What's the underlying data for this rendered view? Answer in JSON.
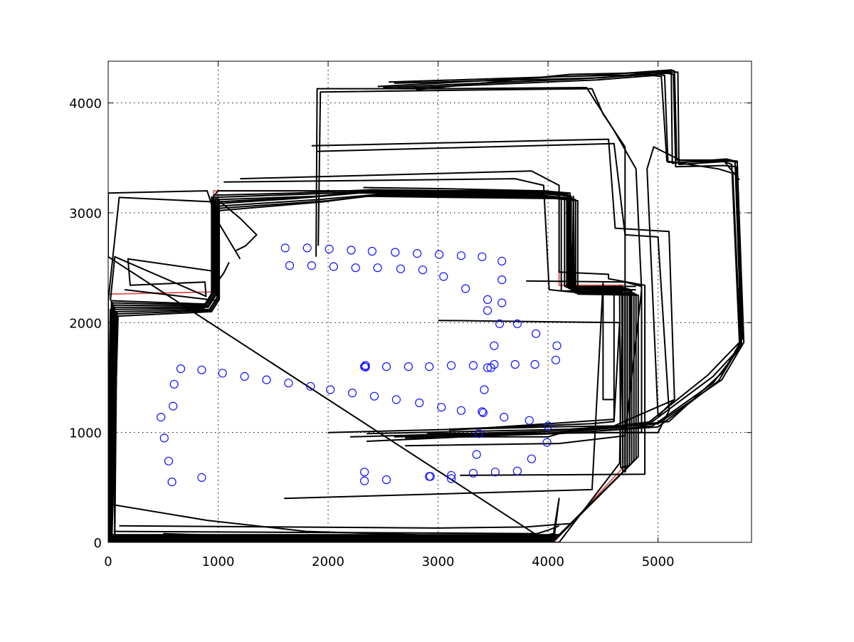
{
  "chart_data": {
    "type": "scatter",
    "xlim": [
      0,
      5850
    ],
    "ylim": [
      0,
      4380
    ],
    "xticks": [
      0,
      1000,
      2000,
      3000,
      4000,
      5000
    ],
    "yticks": [
      0,
      1000,
      2000,
      3000,
      4000
    ],
    "xtick_labels": [
      "0",
      "1000",
      "2000",
      "3000",
      "4000",
      "5000"
    ],
    "ytick_labels": [
      "0",
      "1000",
      "2000",
      "3000",
      "4000"
    ],
    "grid": true,
    "colors": {
      "markers": "#1010ff",
      "trajectories": "#000000",
      "reference": "#e06060"
    },
    "landmarks": {
      "x": [
        1610,
        1810,
        2010,
        2210,
        2400,
        2610,
        2810,
        3010,
        3210,
        3400,
        3580,
        1650,
        1850,
        2050,
        2250,
        2450,
        2660,
        2860,
        3050,
        3250,
        3450,
        3580,
        3580,
        3720,
        3890,
        4080,
        4070,
        3880,
        3700,
        3510,
        3480,
        3510,
        3560,
        3450,
        3420,
        3400,
        3600,
        3830,
        4000,
        3990,
        3850,
        3720,
        3520,
        3320,
        3120,
        2930,
        2530,
        2330,
        2330,
        2920,
        3120,
        3350,
        3370,
        2330,
        2530,
        2730,
        2920,
        3120,
        3320,
        3450,
        3410,
        3210,
        3030,
        2830,
        2620,
        2420,
        2220,
        2020,
        1840,
        1640,
        1440,
        1240,
        1040,
        850,
        660,
        600,
        590,
        480,
        510,
        550,
        580,
        850,
        2340,
        2340
      ],
      "y": [
        2680,
        2680,
        2670,
        2660,
        2650,
        2640,
        2630,
        2620,
        2610,
        2600,
        2560,
        2520,
        2520,
        2510,
        2500,
        2500,
        2490,
        2480,
        2420,
        2310,
        2210,
        2180,
        2390,
        1990,
        1900,
        1790,
        1660,
        1620,
        1620,
        1620,
        1590,
        1790,
        1990,
        2110,
        1390,
        1190,
        1140,
        1110,
        1060,
        910,
        760,
        650,
        640,
        630,
        610,
        600,
        570,
        560,
        640,
        600,
        580,
        800,
        990,
        1600,
        1600,
        1600,
        1600,
        1610,
        1610,
        1590,
        1180,
        1200,
        1230,
        1270,
        1300,
        1330,
        1360,
        1390,
        1420,
        1450,
        1480,
        1510,
        1540,
        1570,
        1580,
        1440,
        1240,
        1140,
        950,
        740,
        550,
        590,
        1610,
        1595
      ]
    },
    "reference_path": {
      "x": [
        0,
        960,
        960,
        4000,
        4100,
        4100,
        4700,
        4700,
        4050,
        0,
        0
      ],
      "y": [
        2260,
        2280,
        3200,
        3200,
        3150,
        2340,
        2340,
        700,
        0,
        0,
        2260
      ]
    },
    "trajectories": [
      {
        "x": [
          2320,
          3000,
          3940,
          4150,
          4150,
          4700,
          4700,
          4050,
          10,
          30,
          880,
          950,
          950,
          1800,
          2500
        ],
        "y": [
          3230,
          3220,
          3200,
          3180,
          2330,
          2320,
          660,
          10,
          10,
          2200,
          2170,
          2280,
          3140,
          3170,
          3200
        ]
      },
      {
        "x": [
          2400,
          3200,
          3960,
          4170,
          4170,
          4720,
          4720,
          4060,
          20,
          40,
          890,
          960,
          960,
          1700,
          2400
        ],
        "y": [
          3210,
          3200,
          3190,
          3170,
          2320,
          2310,
          680,
          20,
          20,
          2180,
          2160,
          2270,
          3160,
          3180,
          3210
        ]
      },
      {
        "x": [
          2350,
          3100,
          3980,
          4190,
          4190,
          4740,
          4740,
          4070,
          30,
          50,
          900,
          970,
          970,
          1900,
          2350
        ],
        "y": [
          3200,
          3190,
          3180,
          3160,
          2310,
          2300,
          700,
          30,
          30,
          2160,
          2150,
          2260,
          3120,
          3150,
          3200
        ]
      },
      {
        "x": [
          2300,
          3050,
          4000,
          4210,
          4210,
          4760,
          4760,
          4080,
          0,
          60,
          910,
          980,
          980,
          1800,
          2300
        ],
        "y": [
          3190,
          3180,
          3170,
          3150,
          2300,
          2290,
          720,
          40,
          40,
          2140,
          2140,
          2250,
          3100,
          3140,
          3190
        ]
      },
      {
        "x": [
          2280,
          3000,
          3950,
          4120,
          4120,
          4680,
          4680,
          4030,
          5,
          20,
          870,
          940,
          940,
          1700,
          2280
        ],
        "y": [
          3180,
          3170,
          3160,
          3140,
          2290,
          2280,
          640,
          0,
          0,
          2120,
          2130,
          2240,
          3080,
          3130,
          3180
        ]
      },
      {
        "x": [
          2500,
          3300,
          4020,
          4230,
          4230,
          4780,
          4780,
          4090,
          15,
          70,
          920,
          990,
          990,
          1900,
          2500
        ],
        "y": [
          3170,
          3160,
          3150,
          3130,
          2280,
          2270,
          740,
          50,
          50,
          2100,
          2120,
          2230,
          3060,
          3120,
          3170
        ]
      },
      {
        "x": [
          2450,
          3250,
          4040,
          4250,
          4250,
          4800,
          4800,
          4100,
          25,
          80,
          930,
          1000,
          1000,
          2000,
          2450
        ],
        "y": [
          3160,
          3150,
          3140,
          3120,
          2270,
          2260,
          760,
          60,
          60,
          2080,
          2110,
          2220,
          3040,
          3110,
          3160
        ]
      },
      {
        "x": [
          2350,
          3150,
          4060,
          4270,
          4270,
          4820,
          4820,
          4110,
          35,
          90,
          940,
          1010,
          1010,
          1950,
          2350
        ],
        "y": [
          3150,
          3140,
          3130,
          3110,
          2260,
          2250,
          780,
          70,
          70,
          2060,
          2100,
          2210,
          3020,
          3100,
          3150
        ]
      },
      {
        "x": [
          1200,
          980,
          900,
          0,
          0,
          4000,
          4100,
          4650,
          4680,
          4200,
          4200,
          3950,
          1000,
          960
        ],
        "y": [
          2580,
          2950,
          3200,
          3180,
          2600,
          0,
          0,
          720,
          2330,
          2330,
          3180,
          3200,
          3200,
          3150
        ]
      },
      {
        "x": [
          1000,
          940,
          1050,
          1100
        ],
        "y": [
          3150,
          2300,
          2450,
          2550
        ]
      },
      {
        "x": [
          1020,
          1200,
          1350,
          1250,
          1150
        ],
        "y": [
          3100,
          2950,
          2800,
          2700,
          2650
        ]
      },
      {
        "x": [
          150,
          1000,
          960,
          100,
          0,
          0,
          3900,
          4050,
          4100,
          4050,
          3000,
          500
        ],
        "y": [
          2300,
          2200,
          3100,
          3140,
          2200,
          50,
          50,
          80,
          400,
          0,
          0,
          80
        ]
      },
      {
        "x": [
          20,
          60,
          890,
          880,
          200,
          180,
          950,
          990,
          1000
        ],
        "y": [
          2200,
          2600,
          2240,
          2370,
          2340,
          2580,
          2470,
          2620,
          2800
        ]
      },
      {
        "x": [
          1200,
          3850,
          4100,
          4100,
          4550,
          4550,
          4880,
          4880,
          3200
        ],
        "y": [
          3310,
          3380,
          3250,
          2460,
          2440,
          2400,
          2340,
          620,
          610
        ]
      },
      {
        "x": [
          1050,
          3700,
          3960,
          4010,
          4400,
          4600,
          4600,
          3100
        ],
        "y": [
          3280,
          3310,
          3250,
          2300,
          2260,
          2330,
          1120,
          1020
        ]
      },
      {
        "x": [
          3800,
          4700,
          4850,
          4850,
          2900
        ],
        "y": [
          2380,
          2370,
          2330,
          1000,
          990
        ]
      },
      {
        "x": [
          1850,
          4550,
          4610,
          5100,
          5150,
          4600,
          4000,
          2000
        ],
        "y": [
          3610,
          3670,
          2860,
          2830,
          1300,
          1060,
          1050,
          1000
        ]
      },
      {
        "x": [
          1900,
          4600,
          4700,
          5000,
          5100,
          5000,
          4550,
          3000
        ],
        "y": [
          3560,
          3630,
          2800,
          2780,
          1200,
          1000,
          1000,
          980
        ]
      },
      {
        "x": [
          1890,
          1900,
          3000,
          4350,
          4600,
          4800,
          4850,
          4700,
          4100,
          2700
        ],
        "y": [
          2600,
          4130,
          4130,
          4140,
          3750,
          3400,
          2300,
          970,
          900,
          880
        ]
      },
      {
        "x": [
          1910,
          1930,
          3500,
          4400,
          4500,
          4700,
          4700,
          4100,
          2350
        ],
        "y": [
          2700,
          4100,
          4120,
          4130,
          3900,
          3600,
          1050,
          1000,
          920
        ]
      },
      {
        "x": [
          2800,
          4200,
          5150,
          5180,
          5190,
          5650,
          5720,
          5780,
          5580,
          5000,
          4200,
          4000,
          3000
        ],
        "y": [
          4120,
          4260,
          4280,
          4280,
          3440,
          3470,
          3460,
          1820,
          1480,
          1080,
          1020,
          960,
          960
        ]
      },
      {
        "x": [
          2600,
          4500,
          5100,
          5120,
          5130,
          5620,
          5700,
          5760,
          5500,
          4950,
          4300,
          2600
        ],
        "y": [
          4180,
          4230,
          4290,
          4300,
          3450,
          3490,
          3470,
          1790,
          1450,
          1060,
          1000,
          960
        ]
      },
      {
        "x": [
          2450,
          4100,
          5000,
          5060,
          5090,
          5590,
          5670,
          5740,
          5450,
          4900,
          4200,
          2350
        ],
        "y": [
          4150,
          4240,
          4260,
          4250,
          3460,
          3470,
          3440,
          1820,
          1520,
          1080,
          1030,
          990
        ]
      },
      {
        "x": [
          2500,
          4300,
          5090,
          5140,
          5160,
          5600,
          5710,
          5770,
          5600,
          5100,
          4300,
          2200
        ],
        "y": [
          4140,
          4220,
          4270,
          4260,
          3420,
          3430,
          3420,
          1860,
          1560,
          1100,
          1020,
          960
        ]
      },
      {
        "x": [
          2550,
          4400,
          5120,
          5150,
          5170,
          5610,
          5720,
          5750,
          5550,
          5000,
          4100,
          2700
        ],
        "y": [
          4190,
          4250,
          4300,
          4290,
          3480,
          3480,
          3470,
          1800,
          1470,
          1050,
          990,
          950
        ]
      },
      {
        "x": [
          2560,
          4450,
          4960,
          5030,
          5080,
          5550,
          5680,
          5750,
          5500,
          4950,
          4700,
          4900
        ],
        "y": [
          4130,
          4210,
          4250,
          4240,
          3470,
          3400,
          3360,
          1780,
          1510,
          1100,
          1070,
          1060
        ]
      },
      {
        "x": [
          5150,
          5000,
          4900,
          4960,
          5200,
          5600,
          5740
        ],
        "y": [
          1300,
          1150,
          3400,
          3600,
          3480,
          3470,
          3300
        ]
      },
      {
        "x": [
          0,
          900,
          1800,
          2800,
          3900,
          4050
        ],
        "y": [
          350,
          200,
          100,
          70,
          0,
          30
        ]
      },
      {
        "x": [
          1600,
          4400,
          4500,
          4500,
          4600,
          4600
        ],
        "y": [
          400,
          480,
          2360,
          1300,
          1300,
          1300
        ]
      },
      {
        "x": [
          50,
          2000,
          3900,
          4000,
          4100
        ],
        "y": [
          100,
          90,
          80,
          110,
          150
        ]
      },
      {
        "x": [
          100,
          3000,
          3800,
          4050,
          4200
        ],
        "y": [
          150,
          130,
          140,
          160,
          170
        ]
      },
      {
        "x": [
          3100,
          4400,
          4600,
          4650,
          3000
        ],
        "y": [
          1030,
          1080,
          1100,
          2000,
          2020
        ]
      },
      {
        "x": [
          4800,
          4700,
          4700,
          4720,
          4720,
          4800
        ],
        "y": [
          2330,
          2330,
          640,
          700,
          2300,
          2300
        ]
      },
      {
        "x": [
          4650,
          4660,
          4740,
          4750,
          4670,
          4680
        ],
        "y": [
          2340,
          680,
          700,
          2300,
          2320,
          720
        ]
      },
      {
        "x": [
          4180,
          4180,
          4200,
          4220,
          4230,
          4240
        ],
        "y": [
          3180,
          2340,
          3160,
          2320,
          3150,
          2310
        ]
      },
      {
        "x": [
          940,
          960,
          980,
          1000,
          1010
        ],
        "y": [
          3150,
          2300,
          3140,
          2280,
          3120
        ]
      },
      {
        "x": [
          0,
          20,
          40,
          60,
          80,
          10
        ],
        "y": [
          2200,
          60,
          2150,
          40,
          2100,
          20
        ]
      }
    ]
  }
}
